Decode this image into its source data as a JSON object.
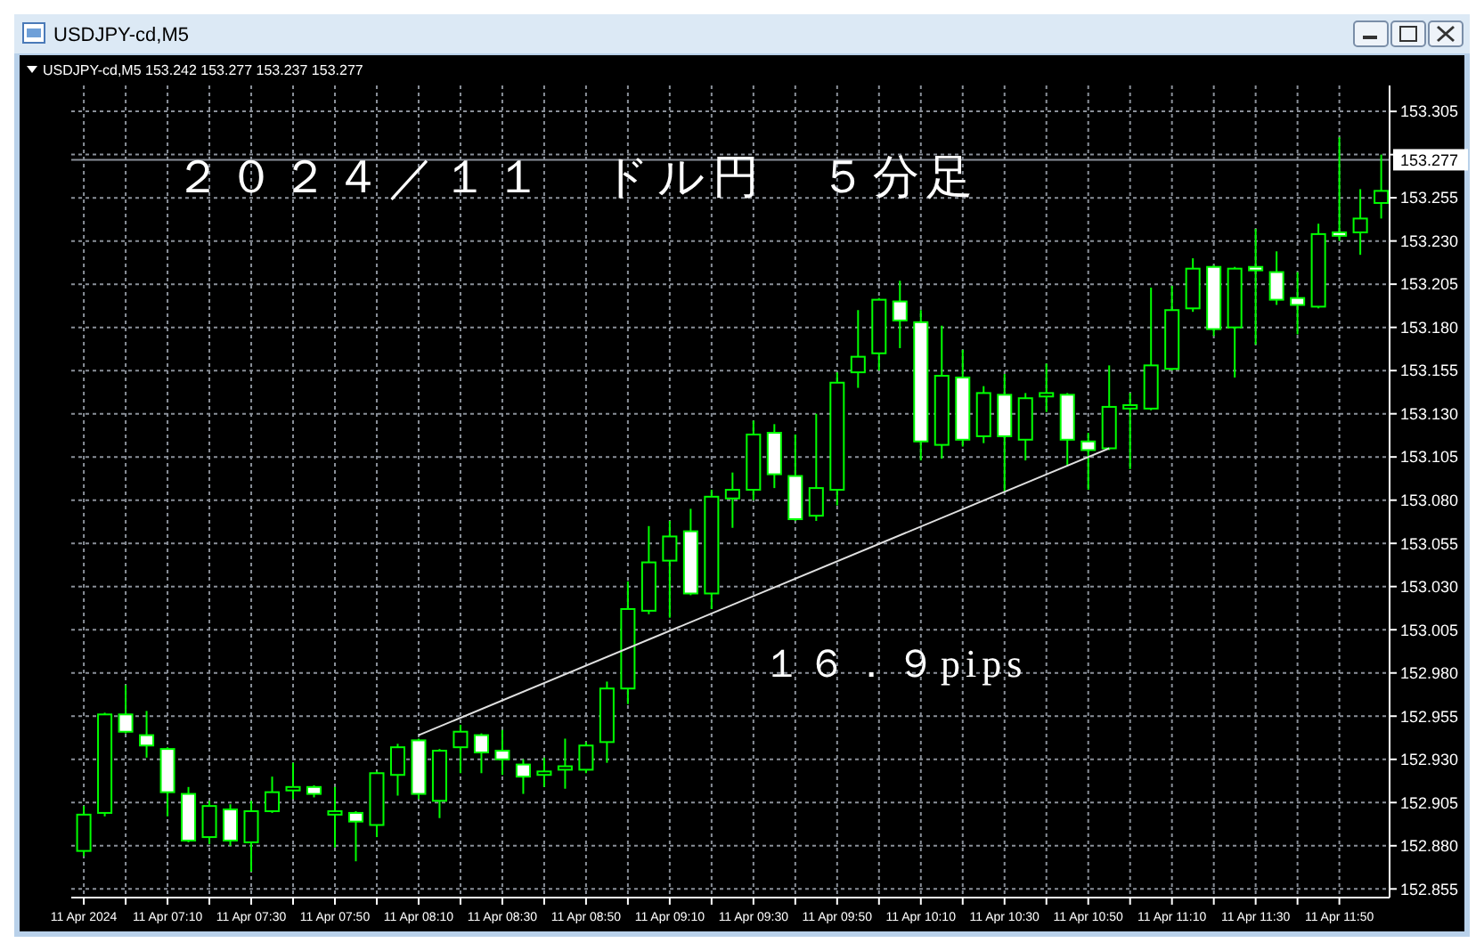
{
  "chart_data": {
    "type": "candlestick",
    "title": "USDJPY-cd,M5",
    "subtitle": "USDJPY-cd,M5  153.242 153.277 153.237 153.277",
    "annotations": [
      "２０２４／１１　ドル円　５分足",
      "１６．９pips"
    ],
    "xlim": [
      "2024-04-11T06:47",
      "2024-04-11T12:02"
    ],
    "xticks": [
      {
        "value": "2024-04-11T06:50",
        "label": "11 Apr 2024"
      },
      {
        "value": "2024-04-11T07:00",
        "label": null
      },
      {
        "value": "2024-04-11T07:10",
        "label": "11 Apr 07:10"
      },
      {
        "value": "2024-04-11T07:20",
        "label": null
      },
      {
        "value": "2024-04-11T07:30",
        "label": "11 Apr 07:30"
      },
      {
        "value": "2024-04-11T07:40",
        "label": null
      },
      {
        "value": "2024-04-11T07:50",
        "label": "11 Apr 07:50"
      },
      {
        "value": "2024-04-11T08:00",
        "label": null
      },
      {
        "value": "2024-04-11T08:10",
        "label": "11 Apr 08:10"
      },
      {
        "value": "2024-04-11T08:20",
        "label": null
      },
      {
        "value": "2024-04-11T08:30",
        "label": "11 Apr 08:30"
      },
      {
        "value": "2024-04-11T08:40",
        "label": null
      },
      {
        "value": "2024-04-11T08:50",
        "label": "11 Apr 08:50"
      },
      {
        "value": "2024-04-11T09:00",
        "label": null
      },
      {
        "value": "2024-04-11T09:10",
        "label": "11 Apr 09:10"
      },
      {
        "value": "2024-04-11T09:20",
        "label": null
      },
      {
        "value": "2024-04-11T09:30",
        "label": "11 Apr 09:30"
      },
      {
        "value": "2024-04-11T09:40",
        "label": null
      },
      {
        "value": "2024-04-11T09:50",
        "label": "11 Apr 09:50"
      },
      {
        "value": "2024-04-11T10:00",
        "label": null
      },
      {
        "value": "2024-04-11T10:10",
        "label": "11 Apr 10:10"
      },
      {
        "value": "2024-04-11T10:20",
        "label": null
      },
      {
        "value": "2024-04-11T10:30",
        "label": "11 Apr 10:30"
      },
      {
        "value": "2024-04-11T10:40",
        "label": null
      },
      {
        "value": "2024-04-11T10:50",
        "label": "11 Apr 10:50"
      },
      {
        "value": "2024-04-11T11:00",
        "label": null
      },
      {
        "value": "2024-04-11T11:10",
        "label": "11 Apr 11:10"
      },
      {
        "value": "2024-04-11T11:20",
        "label": null
      },
      {
        "value": "2024-04-11T11:30",
        "label": "11 Apr 11:30"
      },
      {
        "value": "2024-04-11T11:40",
        "label": null
      },
      {
        "value": "2024-04-11T11:50",
        "label": "11 Apr 11:50"
      }
    ],
    "ylim": [
      152.85,
      153.32
    ],
    "yticks": [
      152.855,
      {
        "value": 152.88,
        "label": "152.880"
      },
      152.905,
      {
        "value": 152.93,
        "label": "152.930"
      },
      152.955,
      {
        "value": 152.98,
        "label": "152.980"
      },
      153.005,
      {
        "value": 153.03,
        "label": "153.030"
      },
      153.055,
      {
        "value": 153.08,
        "label": "153.080"
      },
      153.105,
      {
        "value": 153.13,
        "label": "153.130"
      },
      153.155,
      {
        "value": 153.18,
        "label": "153.180"
      },
      153.205,
      {
        "value": 153.23,
        "label": "153.230"
      },
      153.255,
      {
        "value": 153.28,
        "label": null
      },
      153.305
    ],
    "grid": true,
    "ref_lines": [
      {
        "axis": "y",
        "value": 153.277,
        "label": "153.277",
        "color": "#8a9099"
      }
    ],
    "series": [
      {
        "color": "#00ff00",
        "x": [
          "2024-04-11T06:50",
          "2024-04-11T06:55",
          "2024-04-11T07:00",
          "2024-04-11T07:05",
          "2024-04-11T07:10",
          "2024-04-11T07:15",
          "2024-04-11T07:20",
          "2024-04-11T07:25",
          "2024-04-11T07:30",
          "2024-04-11T07:35",
          "2024-04-11T07:40",
          "2024-04-11T07:45",
          "2024-04-11T07:50",
          "2024-04-11T07:55",
          "2024-04-11T08:00",
          "2024-04-11T08:05",
          "2024-04-11T08:10",
          "2024-04-11T08:15",
          "2024-04-11T08:20",
          "2024-04-11T08:25",
          "2024-04-11T08:30",
          "2024-04-11T08:35",
          "2024-04-11T08:40",
          "2024-04-11T08:45",
          "2024-04-11T08:50",
          "2024-04-11T08:55",
          "2024-04-11T09:00",
          "2024-04-11T09:05",
          "2024-04-11T09:10",
          "2024-04-11T09:15",
          "2024-04-11T09:20",
          "2024-04-11T09:25",
          "2024-04-11T09:30",
          "2024-04-11T09:35",
          "2024-04-11T09:40",
          "2024-04-11T09:45",
          "2024-04-11T09:50",
          "2024-04-11T09:55",
          "2024-04-11T10:00",
          "2024-04-11T10:05",
          "2024-04-11T10:10",
          "2024-04-11T10:15",
          "2024-04-11T10:20",
          "2024-04-11T10:25",
          "2024-04-11T10:30",
          "2024-04-11T10:35",
          "2024-04-11T10:40",
          "2024-04-11T10:45",
          "2024-04-11T10:50",
          "2024-04-11T10:55",
          "2024-04-11T11:00",
          "2024-04-11T11:05",
          "2024-04-11T11:10",
          "2024-04-11T11:15",
          "2024-04-11T11:20",
          "2024-04-11T11:25",
          "2024-04-11T11:30",
          "2024-04-11T11:35",
          "2024-04-11T11:40",
          "2024-04-11T11:45",
          "2024-04-11T11:50",
          "2024-04-11T11:55",
          "2024-04-11T12:00"
        ],
        "ohlc": [
          [
            152.877,
            152.903,
            152.874,
            152.898
          ],
          [
            152.899,
            152.957,
            152.897,
            152.956
          ],
          [
            152.956,
            152.973,
            152.945,
            152.946
          ],
          [
            152.944,
            152.958,
            152.931,
            152.938
          ],
          [
            152.936,
            152.937,
            152.897,
            152.911
          ],
          [
            152.91,
            152.914,
            152.882,
            152.883
          ],
          [
            152.885,
            152.906,
            152.881,
            152.903
          ],
          [
            152.901,
            152.904,
            152.88,
            152.883
          ],
          [
            152.882,
            152.906,
            152.865,
            152.9
          ],
          [
            152.9,
            152.92,
            152.899,
            152.911
          ],
          [
            152.912,
            152.928,
            152.907,
            152.914
          ],
          [
            152.914,
            152.915,
            152.908,
            152.91
          ],
          [
            152.898,
            152.914,
            152.879,
            152.9
          ],
          [
            152.899,
            152.9,
            152.871,
            152.894
          ],
          [
            152.892,
            152.923,
            152.885,
            152.922
          ],
          [
            152.921,
            152.939,
            152.909,
            152.937
          ],
          [
            152.941,
            152.942,
            152.907,
            152.91
          ],
          [
            152.906,
            152.936,
            152.896,
            152.935
          ],
          [
            152.937,
            152.95,
            152.922,
            152.946
          ],
          [
            152.944,
            152.945,
            152.922,
            152.934
          ],
          [
            152.935,
            152.947,
            152.921,
            152.93
          ],
          [
            152.927,
            152.93,
            152.91,
            152.92
          ],
          [
            152.921,
            152.931,
            152.914,
            152.923
          ],
          [
            152.924,
            152.942,
            152.913,
            152.926
          ],
          [
            152.924,
            152.94,
            152.922,
            152.938
          ],
          [
            152.94,
            152.975,
            152.928,
            152.971
          ],
          [
            152.971,
            153.033,
            152.962,
            153.017
          ],
          [
            153.016,
            153.065,
            153.014,
            153.044
          ],
          [
            153.045,
            153.068,
            153.012,
            153.059
          ],
          [
            153.062,
            153.075,
            153.025,
            153.026
          ],
          [
            153.026,
            153.086,
            153.017,
            153.082
          ],
          [
            153.081,
            153.096,
            153.064,
            153.086
          ],
          [
            153.086,
            153.126,
            153.08,
            153.118
          ],
          [
            153.119,
            153.124,
            153.087,
            153.095
          ],
          [
            153.094,
            153.118,
            153.068,
            153.069
          ],
          [
            153.071,
            153.13,
            153.068,
            153.087
          ],
          [
            153.086,
            153.154,
            153.077,
            153.148
          ],
          [
            153.154,
            153.19,
            153.145,
            153.163
          ],
          [
            153.165,
            153.197,
            153.155,
            153.196
          ],
          [
            153.195,
            153.207,
            153.168,
            153.184
          ],
          [
            153.183,
            153.19,
            153.103,
            153.114
          ],
          [
            153.112,
            153.181,
            153.104,
            153.152
          ],
          [
            153.151,
            153.167,
            153.111,
            153.115
          ],
          [
            153.117,
            153.146,
            153.113,
            153.142
          ],
          [
            153.141,
            153.153,
            153.085,
            153.117
          ],
          [
            153.115,
            153.142,
            153.103,
            153.139
          ],
          [
            153.14,
            153.159,
            153.131,
            153.142
          ],
          [
            153.141,
            153.142,
            153.1,
            153.115
          ],
          [
            153.114,
            153.119,
            153.086,
            153.109
          ],
          [
            153.11,
            153.158,
            153.109,
            153.134
          ],
          [
            153.133,
            153.142,
            153.098,
            153.135
          ],
          [
            153.133,
            153.203,
            153.132,
            153.158
          ],
          [
            153.156,
            153.204,
            153.155,
            153.19
          ],
          [
            153.191,
            153.22,
            153.189,
            153.214
          ],
          [
            153.215,
            153.216,
            153.175,
            153.179
          ],
          [
            153.18,
            153.215,
            153.151,
            153.214
          ],
          [
            153.215,
            153.237,
            153.17,
            153.213
          ],
          [
            153.212,
            153.224,
            153.193,
            153.196
          ],
          [
            153.197,
            153.212,
            153.176,
            153.193
          ],
          [
            153.192,
            153.24,
            153.191,
            153.234
          ],
          [
            153.235,
            153.29,
            153.23,
            153.233
          ],
          [
            153.235,
            153.26,
            153.222,
            153.243
          ],
          [
            153.252,
            153.28,
            153.243,
            153.259
          ]
        ]
      },
      {
        "type": "line",
        "color": "#e0e0e0",
        "x": [
          "2024-04-11T08:10",
          "2024-04-11T10:55"
        ],
        "values": [
          152.944,
          153.11
        ]
      }
    ]
  }
}
